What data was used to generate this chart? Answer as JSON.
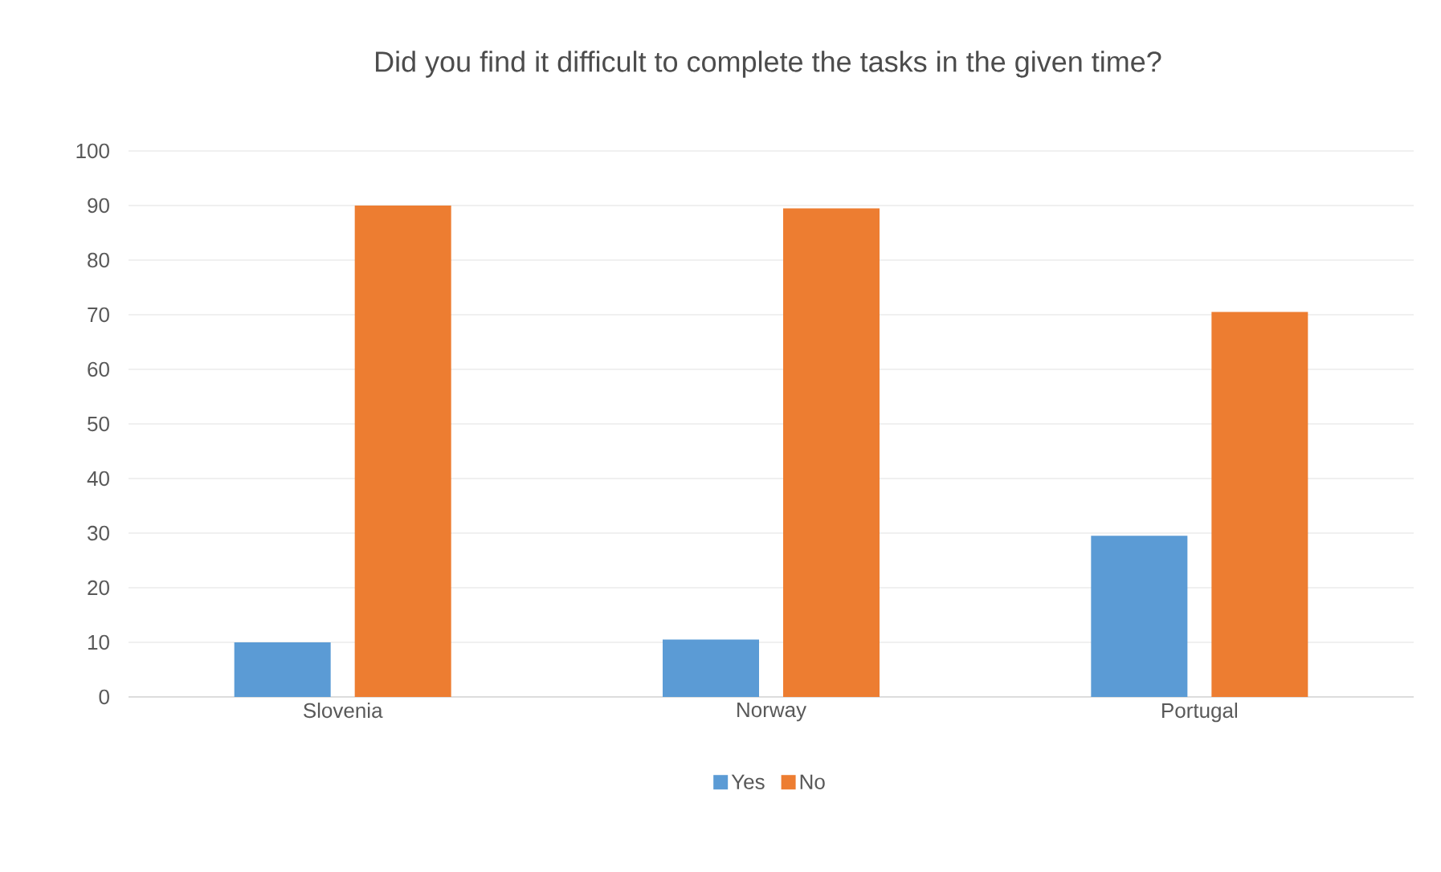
{
  "chart_data": {
    "type": "bar",
    "title": "Did you find it difficult to complete the tasks in the given time?",
    "categories": [
      "Slovenia",
      "Norway",
      "Portugal"
    ],
    "series": [
      {
        "name": "Yes",
        "color": "#5b9bd5",
        "values": [
          10,
          10.5,
          29.5
        ]
      },
      {
        "name": "No",
        "color": "#ed7d31",
        "values": [
          90,
          89.5,
          70.5
        ]
      }
    ],
    "ylim": [
      0,
      100
    ],
    "yticks": [
      0,
      10,
      20,
      30,
      40,
      50,
      60,
      70,
      80,
      90,
      100
    ],
    "grid": "y",
    "legend": "bottom"
  }
}
